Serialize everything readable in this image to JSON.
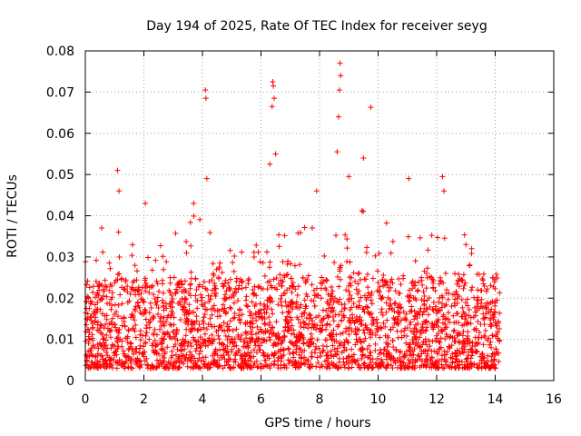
{
  "chart_data": {
    "type": "scatter",
    "title": "Day 194 of 2025, Rate Of TEC Index for receiver seyg",
    "xlabel": "GPS time / hours",
    "ylabel": "ROTI / TECUs",
    "xlim": [
      0,
      16
    ],
    "ylim": [
      0,
      0.08
    ],
    "xticks": [
      "0",
      "2",
      "4",
      "6",
      "8",
      "10",
      "12",
      "14",
      "16"
    ],
    "yticks": [
      "0",
      "0.01",
      "0.02",
      "0.03",
      "0.04",
      "0.05",
      "0.06",
      "0.07",
      "0.08"
    ],
    "grid": true,
    "marker": "+",
    "series_color": "#ff0000",
    "data_span_hours": [
      0.0,
      14.15
    ],
    "typical_range": [
      0.003,
      0.02
    ],
    "peaks": [
      {
        "x": 1.1,
        "y": 0.051
      },
      {
        "x": 1.15,
        "y": 0.046
      },
      {
        "x": 2.05,
        "y": 0.043
      },
      {
        "x": 4.1,
        "y": 0.0705
      },
      {
        "x": 4.12,
        "y": 0.0685
      },
      {
        "x": 4.15,
        "y": 0.049
      },
      {
        "x": 6.3,
        "y": 0.0525
      },
      {
        "x": 6.4,
        "y": 0.0725
      },
      {
        "x": 6.42,
        "y": 0.0715
      },
      {
        "x": 6.45,
        "y": 0.0685
      },
      {
        "x": 6.38,
        "y": 0.0665
      },
      {
        "x": 6.5,
        "y": 0.055
      },
      {
        "x": 8.7,
        "y": 0.077
      },
      {
        "x": 8.72,
        "y": 0.074
      },
      {
        "x": 8.68,
        "y": 0.0705
      },
      {
        "x": 8.65,
        "y": 0.064
      },
      {
        "x": 8.6,
        "y": 0.0555
      },
      {
        "x": 9.0,
        "y": 0.0495
      },
      {
        "x": 9.5,
        "y": 0.054
      },
      {
        "x": 9.75,
        "y": 0.0663
      },
      {
        "x": 11.05,
        "y": 0.049
      },
      {
        "x": 12.2,
        "y": 0.0495
      },
      {
        "x": 12.25,
        "y": 0.046
      },
      {
        "x": 13.0,
        "y": 0.033
      },
      {
        "x": 7.9,
        "y": 0.046
      },
      {
        "x": 3.7,
        "y": 0.043
      }
    ]
  }
}
